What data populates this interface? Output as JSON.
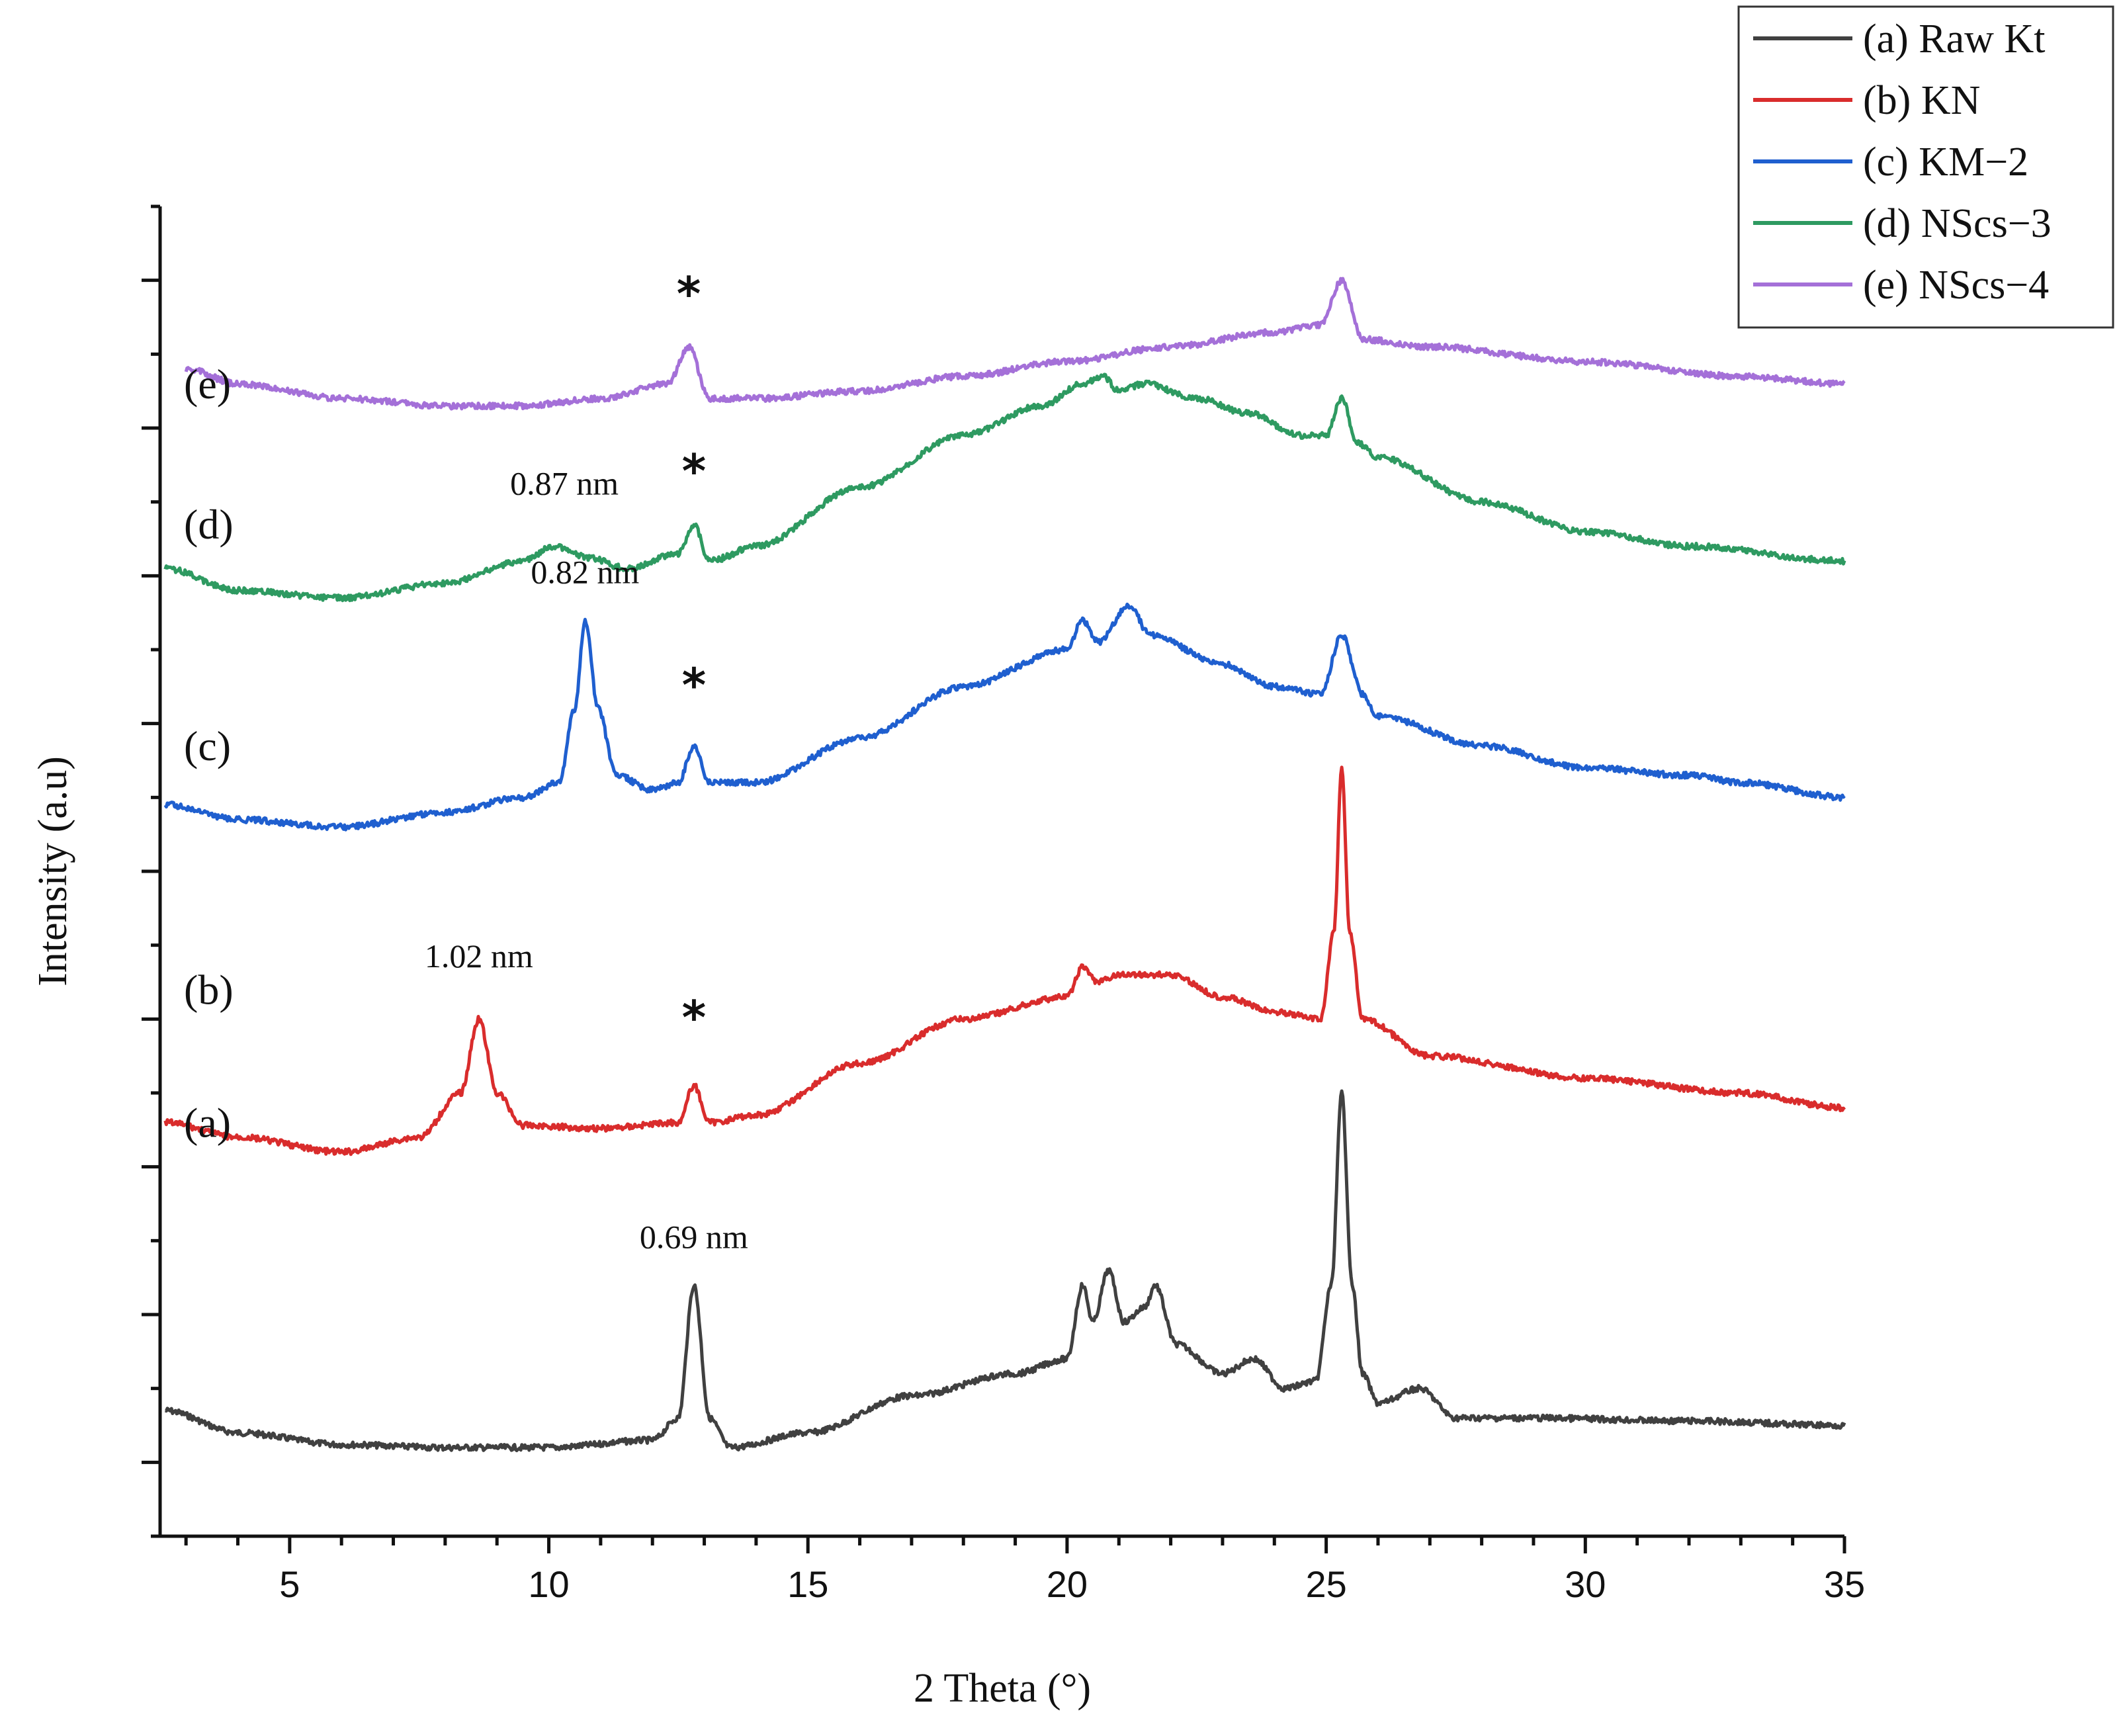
{
  "chart_data": {
    "type": "line",
    "title": "",
    "xlabel": "2 Theta (°)",
    "ylabel": "Intensity (a.u)",
    "xlim": [
      2.5,
      35
    ],
    "x_ticks": [
      5,
      10,
      15,
      20,
      25,
      30,
      35
    ],
    "y_ticks_labeled": false,
    "grid": false,
    "legend_position": "top-right",
    "series": [
      {
        "name": "(a) Raw Kt",
        "curve_label": "(a)",
        "color": "#404040",
        "baseline": 0.3,
        "points": [
          [
            2.6,
            0.35
          ],
          [
            4,
            0.2
          ],
          [
            6,
            0.12
          ],
          [
            8,
            0.1
          ],
          [
            10,
            0.1
          ],
          [
            12,
            0.15
          ],
          [
            12.5,
            0.3
          ],
          [
            12.8,
            1.2
          ],
          [
            13.1,
            0.3
          ],
          [
            13.5,
            0.1
          ],
          [
            15,
            0.2
          ],
          [
            17,
            0.45
          ],
          [
            19,
            0.6
          ],
          [
            20,
            0.7
          ],
          [
            20.3,
            1.2
          ],
          [
            20.5,
            0.95
          ],
          [
            20.8,
            1.3
          ],
          [
            21.1,
            0.95
          ],
          [
            21.5,
            1.05
          ],
          [
            21.7,
            1.2
          ],
          [
            22.1,
            0.8
          ],
          [
            23,
            0.6
          ],
          [
            23.6,
            0.7
          ],
          [
            24.2,
            0.5
          ],
          [
            24.8,
            0.55
          ],
          [
            25.1,
            1.2
          ],
          [
            25.3,
            2.5
          ],
          [
            25.5,
            1.2
          ],
          [
            25.7,
            0.6
          ],
          [
            26,
            0.4
          ],
          [
            26.8,
            0.5
          ],
          [
            27.5,
            0.3
          ],
          [
            29,
            0.3
          ],
          [
            32,
            0.28
          ],
          [
            35,
            0.25
          ]
        ],
        "annotation": "0.69 nm",
        "marker_peak": null
      },
      {
        "name": "(b) KN",
        "curve_label": "(b)",
        "color": "#d92c2c",
        "baseline": 2.3,
        "points": [
          [
            2.6,
            2.3
          ],
          [
            4,
            2.2
          ],
          [
            6,
            2.1
          ],
          [
            7.5,
            2.2
          ],
          [
            8.3,
            2.5
          ],
          [
            8.65,
            3.0
          ],
          [
            9,
            2.5
          ],
          [
            9.5,
            2.28
          ],
          [
            11,
            2.26
          ],
          [
            12.5,
            2.3
          ],
          [
            12.8,
            2.55
          ],
          [
            13.1,
            2.3
          ],
          [
            14,
            2.35
          ],
          [
            16,
            2.7
          ],
          [
            18,
            3.0
          ],
          [
            20,
            3.15
          ],
          [
            20.3,
            3.35
          ],
          [
            20.6,
            3.25
          ],
          [
            21,
            3.3
          ],
          [
            22,
            3.3
          ],
          [
            23,
            3.15
          ],
          [
            24,
            3.05
          ],
          [
            24.9,
            3.0
          ],
          [
            25.15,
            3.6
          ],
          [
            25.3,
            4.7
          ],
          [
            25.45,
            3.6
          ],
          [
            25.7,
            3.0
          ],
          [
            27,
            2.75
          ],
          [
            30,
            2.6
          ],
          [
            33,
            2.5
          ],
          [
            35,
            2.4
          ]
        ],
        "annotation": "1.02 nm",
        "marker_peak": 12.8
      },
      {
        "name": "(c) KM−2",
        "curve_label": "(c)",
        "color": "#1f5fcf",
        "baseline": 4.4,
        "points": [
          [
            2.6,
            4.45
          ],
          [
            4,
            4.35
          ],
          [
            6,
            4.3
          ],
          [
            8,
            4.4
          ],
          [
            9.5,
            4.5
          ],
          [
            10.2,
            4.6
          ],
          [
            10.5,
            5.1
          ],
          [
            10.7,
            5.7
          ],
          [
            10.95,
            5.1
          ],
          [
            11.3,
            4.65
          ],
          [
            12,
            4.55
          ],
          [
            12.5,
            4.6
          ],
          [
            12.8,
            4.85
          ],
          [
            13.1,
            4.6
          ],
          [
            14,
            4.6
          ],
          [
            16,
            4.9
          ],
          [
            18,
            5.25
          ],
          [
            20,
            5.5
          ],
          [
            20.3,
            5.7
          ],
          [
            20.6,
            5.55
          ],
          [
            21.2,
            5.8
          ],
          [
            21.6,
            5.6
          ],
          [
            23,
            5.4
          ],
          [
            24,
            5.25
          ],
          [
            24.9,
            5.2
          ],
          [
            25.3,
            5.6
          ],
          [
            25.7,
            5.2
          ],
          [
            26,
            5.05
          ],
          [
            28,
            4.85
          ],
          [
            30,
            4.7
          ],
          [
            32,
            4.65
          ],
          [
            33,
            4.6
          ],
          [
            35,
            4.5
          ]
        ],
        "annotation": "0.82 nm",
        "marker_peak": 12.8
      },
      {
        "name": "(d) NScs−3",
        "curve_label": "(d)",
        "color": "#2e9a61",
        "baseline": 6.0,
        "points": [
          [
            2.6,
            6.05
          ],
          [
            4,
            5.9
          ],
          [
            6,
            5.85
          ],
          [
            8,
            5.95
          ],
          [
            9.5,
            6.1
          ],
          [
            10.1,
            6.2
          ],
          [
            10.8,
            6.12
          ],
          [
            11.5,
            6.05
          ],
          [
            12.5,
            6.15
          ],
          [
            12.8,
            6.35
          ],
          [
            13.1,
            6.1
          ],
          [
            14,
            6.2
          ],
          [
            16,
            6.6
          ],
          [
            18,
            6.95
          ],
          [
            19.5,
            7.15
          ],
          [
            20.3,
            7.3
          ],
          [
            20.7,
            7.35
          ],
          [
            21,
            7.25
          ],
          [
            21.5,
            7.3
          ],
          [
            22.5,
            7.2
          ],
          [
            23.5,
            7.1
          ],
          [
            24.5,
            6.95
          ],
          [
            25,
            6.95
          ],
          [
            25.3,
            7.2
          ],
          [
            25.6,
            6.9
          ],
          [
            26,
            6.8
          ],
          [
            28,
            6.5
          ],
          [
            30,
            6.3
          ],
          [
            32,
            6.2
          ],
          [
            35,
            6.1
          ]
        ],
        "annotation": "0.87 nm",
        "marker_peak": 12.8
      },
      {
        "name": "(e) NScs−4",
        "curve_label": "(e)",
        "color": "#a470d8",
        "baseline": 7.2,
        "points": [
          [
            3,
            7.4
          ],
          [
            4,
            7.3
          ],
          [
            6,
            7.2
          ],
          [
            8,
            7.15
          ],
          [
            9.5,
            7.15
          ],
          [
            11,
            7.2
          ],
          [
            12.3,
            7.3
          ],
          [
            12.7,
            7.55
          ],
          [
            13.1,
            7.2
          ],
          [
            14,
            7.2
          ],
          [
            16,
            7.25
          ],
          [
            18,
            7.35
          ],
          [
            20,
            7.45
          ],
          [
            22,
            7.55
          ],
          [
            24,
            7.65
          ],
          [
            24.9,
            7.7
          ],
          [
            25.3,
            8.0
          ],
          [
            25.7,
            7.6
          ],
          [
            27,
            7.55
          ],
          [
            30,
            7.45
          ],
          [
            33,
            7.35
          ],
          [
            35,
            7.3
          ]
        ],
        "annotation": "",
        "marker_peak": 12.7
      }
    ],
    "ylim": [
      -0.5,
      8.5
    ]
  }
}
